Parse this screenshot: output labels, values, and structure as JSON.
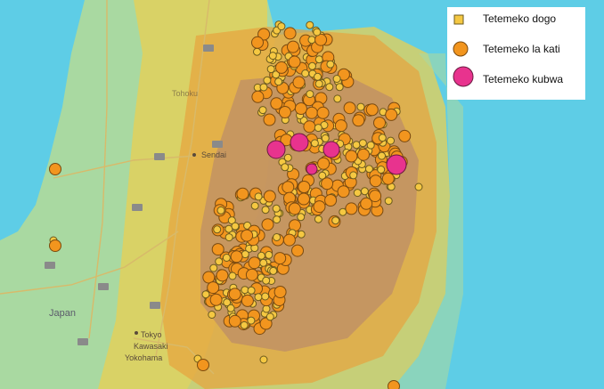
{
  "map": {
    "places": [
      {
        "name": "Sendai"
      },
      {
        "name": "Japan"
      },
      {
        "name": "Tokyo"
      },
      {
        "name": "Kawasaki"
      },
      {
        "name": "Yokohama"
      },
      {
        "name": "Tohoku"
      }
    ],
    "colors": {
      "sea": "#5ecde6",
      "land": "#a9d9a1",
      "zone_yellow": "#e9cf53",
      "zone_orange": "#e7a23d",
      "zone_brown": "#b8896c",
      "small_fill": "#f5c842",
      "medium_fill": "#f2951e",
      "large_fill": "#e8338e"
    }
  },
  "legend": {
    "items": [
      {
        "key": "small",
        "label": "Tetemeko dogo"
      },
      {
        "key": "medium",
        "label": "Tetemeko la kati"
      },
      {
        "key": "large",
        "label": "Tetemeko kubwa"
      }
    ]
  }
}
